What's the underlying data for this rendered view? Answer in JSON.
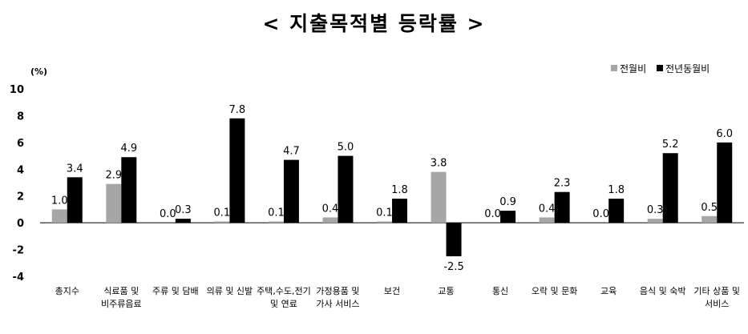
{
  "page": {
    "title": "< 지출목적별 등락률 >"
  },
  "chart_data": {
    "type": "bar",
    "unit": "(%)",
    "categories": [
      [
        "총지수"
      ],
      [
        "식료품 및",
        "비주류음료"
      ],
      [
        "주류 및 담배"
      ],
      [
        "의류 및 신발"
      ],
      [
        "주택,수도,전기",
        "및 연료"
      ],
      [
        "가정용품 및",
        "가사 서비스"
      ],
      [
        "보건"
      ],
      [
        "교통"
      ],
      [
        "통신"
      ],
      [
        "오락 및 문화"
      ],
      [
        "교육"
      ],
      [
        "음식 및 숙박"
      ],
      [
        "기타 상품 및",
        "서비스"
      ]
    ],
    "series": [
      {
        "name": "전월비",
        "color": "#a6a6a6",
        "values": [
          1.0,
          2.9,
          0.0,
          0.1,
          0.1,
          0.4,
          0.1,
          3.8,
          0.0,
          0.4,
          0.0,
          0.3,
          0.5
        ]
      },
      {
        "name": "전년동월비",
        "color": "#000000",
        "values": [
          3.4,
          4.9,
          0.3,
          7.8,
          4.7,
          5.0,
          1.8,
          -2.5,
          0.9,
          2.3,
          1.8,
          5.2,
          6.0
        ]
      }
    ],
    "yticks": [
      10,
      8,
      6,
      4,
      2,
      0,
      -2,
      -4
    ],
    "ylim": [
      -4,
      10
    ],
    "grid": false,
    "legend_position": "top-right"
  }
}
